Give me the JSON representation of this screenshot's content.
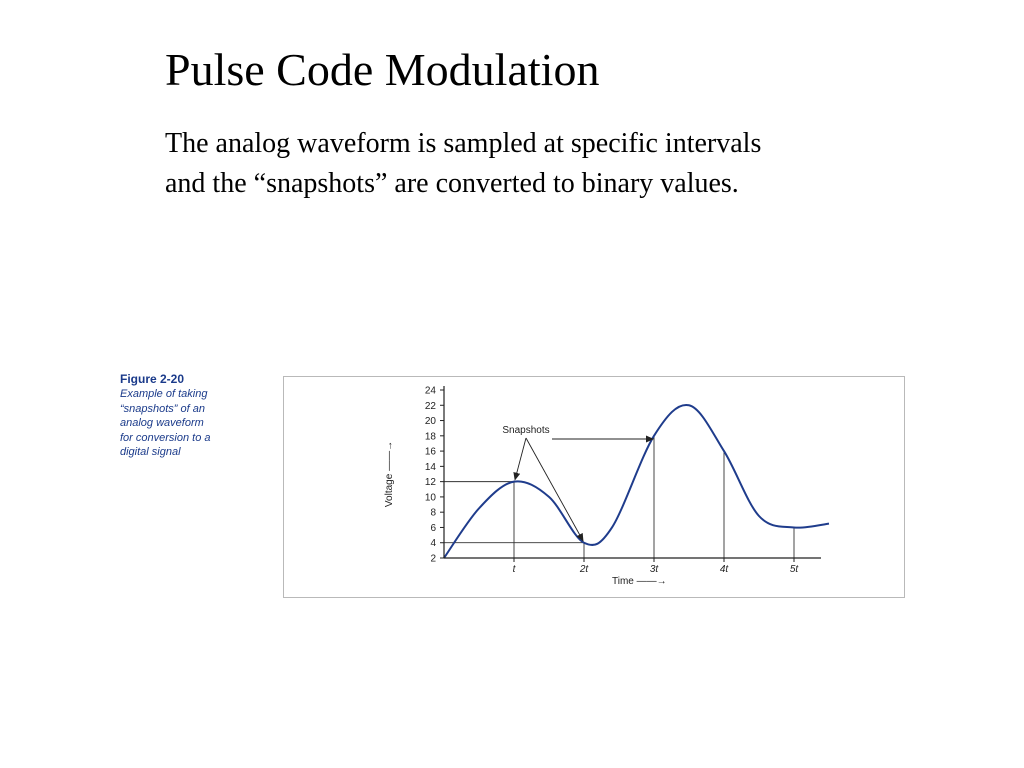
{
  "slide": {
    "title": "Pulse Code Modulation",
    "body_lines": [
      "The analog waveform is sampled at specific intervals",
      "and the “snapshots” are converted to binary values."
    ]
  },
  "figure": {
    "label": "Figure 2-20",
    "caption_lines": [
      "Example of taking",
      "“snapshots” of an",
      "analog waveform",
      "for conversion to a",
      "digital signal"
    ]
  },
  "chart_data": {
    "type": "line",
    "ylabel": "Voltage",
    "xlabel": "Time",
    "ylim": [
      2,
      24
    ],
    "yticks": [
      2,
      4,
      6,
      8,
      10,
      12,
      14,
      16,
      18,
      20,
      22,
      24
    ],
    "xticks": [
      {
        "value": 1,
        "label": "t"
      },
      {
        "value": 2,
        "label": "2t"
      },
      {
        "value": 3,
        "label": "3t"
      },
      {
        "value": 4,
        "label": "4t"
      },
      {
        "value": 5,
        "label": "5t"
      }
    ],
    "xlim": [
      0,
      5.5
    ],
    "series": [
      {
        "color": "#1f3c8c",
        "points": [
          [
            0,
            2
          ],
          [
            0.5,
            8.5
          ],
          [
            1,
            12
          ],
          [
            1.5,
            10
          ],
          [
            2,
            4
          ],
          [
            2.4,
            6
          ],
          [
            3,
            18
          ],
          [
            3.5,
            22
          ],
          [
            4,
            16
          ],
          [
            4.5,
            7.5
          ],
          [
            5,
            6
          ],
          [
            5.5,
            6.5
          ]
        ]
      }
    ],
    "samples": [
      {
        "x": 1,
        "y": 12
      },
      {
        "x": 2,
        "y": 4
      },
      {
        "x": 3,
        "y": 18
      },
      {
        "x": 4,
        "y": 16
      },
      {
        "x": 5,
        "y": 6
      }
    ],
    "annotation": "Snapshots",
    "grid": false,
    "legend": "none"
  }
}
